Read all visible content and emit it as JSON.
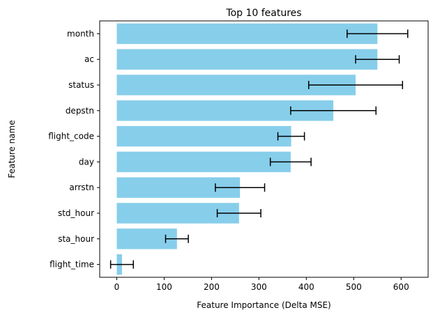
{
  "chart_data": {
    "type": "bar",
    "orientation": "horizontal",
    "title": "Top 10 features",
    "xlabel": "Feature Importance (Delta MSE)",
    "ylabel": "Feature name",
    "categories": [
      "month",
      "ac",
      "status",
      "depstn",
      "flight_code",
      "day",
      "arrstn",
      "std_hour",
      "sta_hour",
      "flight_time"
    ],
    "values": [
      550,
      550,
      504,
      457,
      368,
      367,
      260,
      258,
      127,
      11
    ],
    "errors": [
      64,
      46,
      99,
      90,
      28,
      43,
      52,
      46,
      24,
      24
    ],
    "xlim": [
      -36,
      657
    ],
    "xticks": [
      0,
      100,
      200,
      300,
      400,
      500,
      600
    ],
    "bar_color": "#87ceeb",
    "error_color": "#000000",
    "grid": false
  }
}
